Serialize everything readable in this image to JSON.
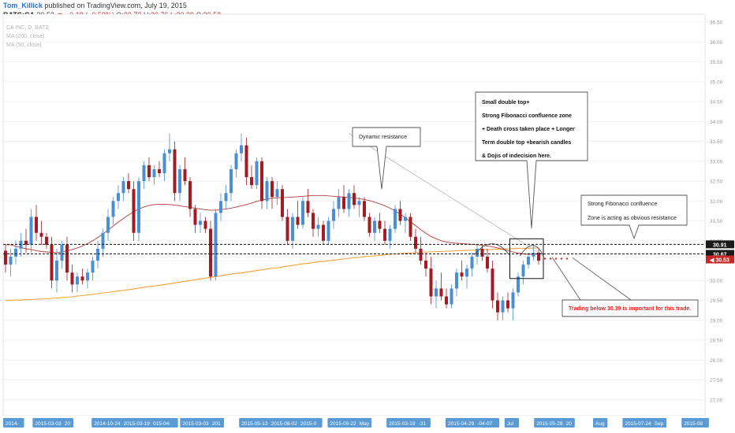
{
  "header": {
    "author": "Tom_Killick",
    "published": "published on TradingView.com, July 19, 2015",
    "symbol": "BATS:CA",
    "last": "30.53",
    "arrow": "▼",
    "change": "−0.18 (−0.59%)",
    "open_label": "O:",
    "open": "30.72",
    "high_label": "H:",
    "high": "30.76",
    "low_label": "L:",
    "low": "30.39",
    "close_label": "C:",
    "close": "30.53"
  },
  "colors": {
    "bull": "#4a8fd6",
    "bear": "#a31c25",
    "ma_fast": "#b23a3a",
    "ma_slow": "#f0a23a",
    "level_label_bg": "#1a1a1a",
    "last_price_bg": "#c62828",
    "axis_date_bg": "#5b9bd5",
    "warning_text": "#e02020"
  },
  "chart_data": {
    "type": "candlestick",
    "legend_lines": [
      "CA INC, D, BATS",
      "MA (200, close)",
      "MA (50, close)"
    ],
    "y_axis": {
      "range": [
        26.6,
        36.7
      ],
      "ticks": [
        "36.50",
        "36.00",
        "35.50",
        "35.00",
        "34.50",
        "34.00",
        "33.50",
        "33.00",
        "32.50",
        "32.00",
        "31.50",
        "31.00",
        "30.50",
        "30.00",
        "29.50",
        "29.00",
        "28.50",
        "28.00",
        "27.50",
        "27.00"
      ]
    },
    "x_axis_labels": [
      "2014-",
      "2015-03-03",
      "20",
      "2014-10-24",
      "2015-03-19",
      "015-04-",
      "2015-03-03",
      "201",
      "2015-05-13",
      "2015-08-02",
      "2015-0",
      "2015-06-22",
      "May",
      "2015-03-19",
      "-31",
      "2015-04-29",
      "-04-07",
      "Jul",
      "2015-05-29",
      "20",
      "Aug",
      "2015-07-24",
      "Sep",
      "2015-08"
    ],
    "candles": [
      [
        30.75,
        30.9,
        30.2,
        30.4
      ],
      [
        30.4,
        30.8,
        30.1,
        30.6
      ],
      [
        30.6,
        31.0,
        30.4,
        30.8
      ],
      [
        30.8,
        31.2,
        30.6,
        31.0
      ],
      [
        31.0,
        31.3,
        30.7,
        30.9
      ],
      [
        30.9,
        31.8,
        30.7,
        31.6
      ],
      [
        31.6,
        31.9,
        31.0,
        31.2
      ],
      [
        31.2,
        31.5,
        30.9,
        31.1
      ],
      [
        31.1,
        31.2,
        30.8,
        30.9
      ],
      [
        30.9,
        31.1,
        29.8,
        30.0
      ],
      [
        30.0,
        30.8,
        29.7,
        30.5
      ],
      [
        30.5,
        31.0,
        30.3,
        30.9
      ],
      [
        30.9,
        31.1,
        30.0,
        30.2
      ],
      [
        30.2,
        30.4,
        29.7,
        29.9
      ],
      [
        29.9,
        30.2,
        29.7,
        30.1
      ],
      [
        30.1,
        30.3,
        29.9,
        30.0
      ],
      [
        30.0,
        30.3,
        29.8,
        30.2
      ],
      [
        30.2,
        30.6,
        30.0,
        30.5
      ],
      [
        30.5,
        31.0,
        30.3,
        30.8
      ],
      [
        30.8,
        31.3,
        30.6,
        31.2
      ],
      [
        31.2,
        31.8,
        31.0,
        31.6
      ],
      [
        31.6,
        32.1,
        31.4,
        32.0
      ],
      [
        32.0,
        32.4,
        31.8,
        32.2
      ],
      [
        32.2,
        32.6,
        32.0,
        32.5
      ],
      [
        32.5,
        32.7,
        32.2,
        32.3
      ],
      [
        32.3,
        32.5,
        31.0,
        31.2
      ],
      [
        31.2,
        32.6,
        31.0,
        32.5
      ],
      [
        32.5,
        33.0,
        32.3,
        32.9
      ],
      [
        32.9,
        33.1,
        32.5,
        32.6
      ],
      [
        32.6,
        32.9,
        32.4,
        32.8
      ],
      [
        32.8,
        33.0,
        32.6,
        32.7
      ],
      [
        32.7,
        33.3,
        32.5,
        33.2
      ],
      [
        33.2,
        33.7,
        33.0,
        33.3
      ],
      [
        33.3,
        33.5,
        32.0,
        32.2
      ],
      [
        32.2,
        32.9,
        32.0,
        32.8
      ],
      [
        32.8,
        33.1,
        32.4,
        32.5
      ],
      [
        32.5,
        32.6,
        31.6,
        31.8
      ],
      [
        31.8,
        31.9,
        31.2,
        31.4
      ],
      [
        31.4,
        31.7,
        31.2,
        31.5
      ],
      [
        31.5,
        31.6,
        31.2,
        31.3
      ],
      [
        31.3,
        31.5,
        30.0,
        30.1
      ],
      [
        30.1,
        31.8,
        30.0,
        31.7
      ],
      [
        31.7,
        32.2,
        31.5,
        32.0
      ],
      [
        32.0,
        32.4,
        31.8,
        32.2
      ],
      [
        32.2,
        32.9,
        32.0,
        32.8
      ],
      [
        32.8,
        33.3,
        32.6,
        33.2
      ],
      [
        33.2,
        33.7,
        33.0,
        33.4
      ],
      [
        33.4,
        33.6,
        32.4,
        32.6
      ],
      [
        32.6,
        32.9,
        32.3,
        32.4
      ],
      [
        32.4,
        33.1,
        32.3,
        33.0
      ],
      [
        33.0,
        33.1,
        31.8,
        32.0
      ],
      [
        32.0,
        32.6,
        31.8,
        32.5
      ],
      [
        32.5,
        32.6,
        31.8,
        32.1
      ],
      [
        32.1,
        32.5,
        31.9,
        32.3
      ],
      [
        32.3,
        32.4,
        31.5,
        31.6
      ],
      [
        31.6,
        31.8,
        30.9,
        31.0
      ],
      [
        31.0,
        31.7,
        30.8,
        31.6
      ],
      [
        31.6,
        32.0,
        31.3,
        31.4
      ],
      [
        31.4,
        32.1,
        31.3,
        32.0
      ],
      [
        32.0,
        32.3,
        31.6,
        31.7
      ],
      [
        31.7,
        31.8,
        31.1,
        31.3
      ],
      [
        31.3,
        31.6,
        31.1,
        31.4
      ],
      [
        31.4,
        31.5,
        30.9,
        31.0
      ],
      [
        31.0,
        31.6,
        30.9,
        31.5
      ],
      [
        31.5,
        32.0,
        31.3,
        31.8
      ],
      [
        31.8,
        32.3,
        31.6,
        32.1
      ],
      [
        32.1,
        32.4,
        31.7,
        31.8
      ],
      [
        31.8,
        32.3,
        31.6,
        32.2
      ],
      [
        32.2,
        32.4,
        31.8,
        31.9
      ],
      [
        31.9,
        32.1,
        31.6,
        32.0
      ],
      [
        32.0,
        32.1,
        31.5,
        31.6
      ],
      [
        31.6,
        31.7,
        31.1,
        31.2
      ],
      [
        31.2,
        31.6,
        31.0,
        31.5
      ],
      [
        31.5,
        31.7,
        31.2,
        31.3
      ],
      [
        31.3,
        31.5,
        30.9,
        31.0
      ],
      [
        31.0,
        31.4,
        30.8,
        31.3
      ],
      [
        31.3,
        31.9,
        31.2,
        31.8
      ],
      [
        31.8,
        32.0,
        31.4,
        31.5
      ],
      [
        31.5,
        31.7,
        31.2,
        31.6
      ],
      [
        31.6,
        31.7,
        31.0,
        31.1
      ],
      [
        31.1,
        31.3,
        30.7,
        30.8
      ],
      [
        30.8,
        31.1,
        30.4,
        30.5
      ],
      [
        30.5,
        30.7,
        30.1,
        30.3
      ],
      [
        30.3,
        30.6,
        29.4,
        29.6
      ],
      [
        29.6,
        30.0,
        29.3,
        29.8
      ],
      [
        29.8,
        30.2,
        29.5,
        29.6
      ],
      [
        29.6,
        29.8,
        29.3,
        29.4
      ],
      [
        29.4,
        29.9,
        29.3,
        29.8
      ],
      [
        29.8,
        30.3,
        29.6,
        30.2
      ],
      [
        30.2,
        30.5,
        30.0,
        30.1
      ],
      [
        30.1,
        30.4,
        29.8,
        30.3
      ],
      [
        30.3,
        30.7,
        30.1,
        30.6
      ],
      [
        30.6,
        30.9,
        30.4,
        30.8
      ],
      [
        30.8,
        30.9,
        30.5,
        30.6
      ],
      [
        30.6,
        30.8,
        30.2,
        30.3
      ],
      [
        30.3,
        30.5,
        29.3,
        29.5
      ],
      [
        29.5,
        29.7,
        29.0,
        29.2
      ],
      [
        29.2,
        29.6,
        29.0,
        29.5
      ],
      [
        29.5,
        29.7,
        29.2,
        29.3
      ],
      [
        29.3,
        29.8,
        29.0,
        29.7
      ],
      [
        29.7,
        30.2,
        29.6,
        30.1
      ],
      [
        30.1,
        30.5,
        29.9,
        30.4
      ],
      [
        30.4,
        30.7,
        30.3,
        30.6
      ],
      [
        30.6,
        30.9,
        30.5,
        30.7
      ],
      [
        30.7,
        30.8,
        30.4,
        30.5
      ]
    ],
    "ma_fast_values": [
      30.9,
      30.9,
      30.86,
      30.83,
      30.8,
      30.78,
      30.75,
      30.73,
      30.72,
      30.71,
      30.7,
      30.72,
      30.75,
      30.78,
      30.82,
      30.87,
      30.93,
      31.0,
      31.08,
      31.17,
      31.27,
      31.37,
      31.47,
      31.56,
      31.65,
      31.73,
      31.8,
      31.85,
      31.89,
      31.91,
      31.92,
      31.92,
      31.91,
      31.9,
      31.88,
      31.86,
      31.84,
      31.82,
      31.8,
      31.78,
      31.77,
      31.77,
      31.78,
      31.8,
      31.82,
      31.85,
      31.88,
      31.91,
      31.95,
      31.99,
      32.02,
      32.05,
      32.07,
      32.08,
      32.09,
      32.09,
      32.1,
      32.11,
      32.12,
      32.13,
      32.14,
      32.14,
      32.14,
      32.13,
      32.12,
      32.11,
      32.1,
      32.09,
      32.08,
      32.06,
      32.04,
      32.01,
      31.97,
      31.93,
      31.88,
      31.82,
      31.75,
      31.67,
      31.58,
      31.48,
      31.38,
      31.28,
      31.19,
      31.11,
      31.05,
      31.0,
      30.97,
      30.95,
      30.94,
      30.93,
      30.92,
      30.91,
      30.9,
      30.89,
      30.87,
      30.85,
      30.82,
      30.79,
      30.75,
      30.72,
      30.69,
      30.67,
      30.66,
      30.66,
      30.67
    ],
    "ma_slow_values": [
      29.5,
      29.5,
      29.51,
      29.51,
      29.52,
      29.52,
      29.53,
      29.53,
      29.54,
      29.55,
      29.56,
      29.57,
      29.58,
      29.59,
      29.61,
      29.62,
      29.64,
      29.65,
      29.67,
      29.69,
      29.7,
      29.72,
      29.74,
      29.75,
      29.77,
      29.79,
      29.81,
      29.83,
      29.85,
      29.86,
      29.88,
      29.9,
      29.92,
      29.94,
      29.96,
      29.98,
      30.0,
      30.02,
      30.04,
      30.06,
      30.08,
      30.1,
      30.12,
      30.14,
      30.16,
      30.18,
      30.19,
      30.21,
      30.23,
      30.25,
      30.27,
      30.29,
      30.31,
      30.32,
      30.34,
      30.36,
      30.38,
      30.4,
      30.42,
      30.43,
      30.45,
      30.47,
      30.48,
      30.5,
      30.51,
      30.53,
      30.54,
      30.56,
      30.57,
      30.58,
      30.6,
      30.61,
      30.62,
      30.63,
      30.65,
      30.66,
      30.67,
      30.68,
      30.69,
      30.69,
      30.7,
      30.71,
      30.72,
      30.72,
      30.73,
      30.73,
      30.74,
      30.74,
      30.75,
      30.75,
      30.76,
      30.76,
      30.77,
      30.77,
      30.78,
      30.78,
      30.79,
      30.79,
      30.8,
      30.8,
      30.81,
      30.81,
      30.81,
      30.82,
      30.82
    ],
    "levels": [
      {
        "value": 30.91,
        "label": "30.91"
      },
      {
        "value": 30.67,
        "label": "30.67"
      }
    ],
    "last_price": {
      "value": 30.53,
      "label": "30.53"
    },
    "trendline": {
      "from": [
        67,
        33.7
      ],
      "to": [
        104,
        30.7
      ]
    },
    "annotations": [
      {
        "id": "dynamic",
        "lines": [
          "Dynamic resistance"
        ]
      },
      {
        "id": "double-top",
        "lines": [
          "Small double top+",
          "Strong Fibonacci confluence zone",
          "+ Death cross taken place + Longer",
          "Term double top +bearish candles",
          "& Dojis of indecision here."
        ]
      },
      {
        "id": "fib-zone",
        "lines": [
          "Strong Fibonacci confluence",
          "Zone is acting as obvious resistance"
        ]
      },
      {
        "id": "trade",
        "lines": [
          "Trading below 30.39 is important for this trade."
        ]
      }
    ]
  }
}
